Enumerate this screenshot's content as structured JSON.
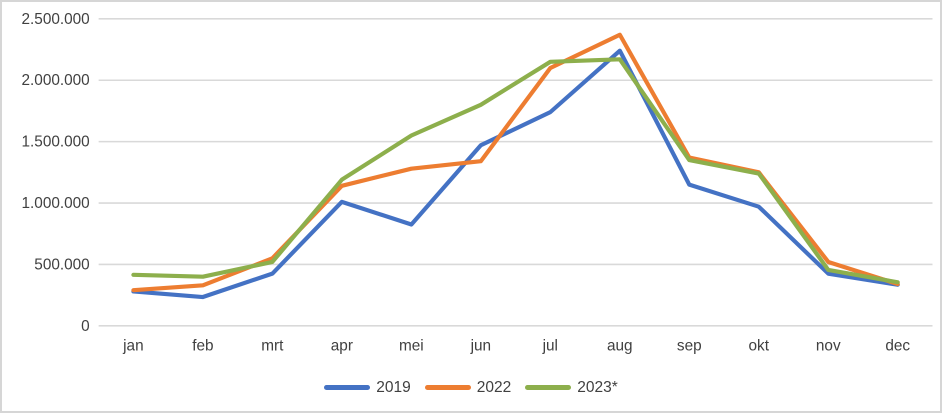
{
  "chart_data": {
    "type": "line",
    "title": "",
    "categories": [
      "jan",
      "feb",
      "mrt",
      "apr",
      "mei",
      "jun",
      "jul",
      "aug",
      "sep",
      "okt",
      "nov",
      "dec"
    ],
    "series": [
      {
        "name": "2019",
        "color": "#4472C4",
        "values": [
          280000,
          235000,
          425000,
          1010000,
          825000,
          1470000,
          1740000,
          2240000,
          1150000,
          970000,
          425000,
          335000
        ]
      },
      {
        "name": "2022",
        "color": "#ED7D31",
        "values": [
          290000,
          330000,
          550000,
          1140000,
          1280000,
          1340000,
          2100000,
          2370000,
          1370000,
          1250000,
          520000,
          340000
        ]
      },
      {
        "name": "2023*",
        "color": "#8DAF4C",
        "values": [
          415000,
          400000,
          520000,
          1190000,
          1550000,
          1800000,
          2150000,
          2170000,
          1350000,
          1240000,
          455000,
          355000
        ]
      }
    ],
    "y_axis": {
      "min": 0,
      "max": 2500000,
      "step": 500000,
      "tick_labels": [
        "0",
        "500.000",
        "1.000.000",
        "1.500.000",
        "2.000.000",
        "2.500.000"
      ]
    },
    "grid": true,
    "legend_position": "bottom"
  },
  "style": {
    "gridline_color": "#D9D9D9",
    "axis_text_color": "#404040",
    "border_color": "#D6D6D6",
    "background": "#FFFFFF"
  }
}
